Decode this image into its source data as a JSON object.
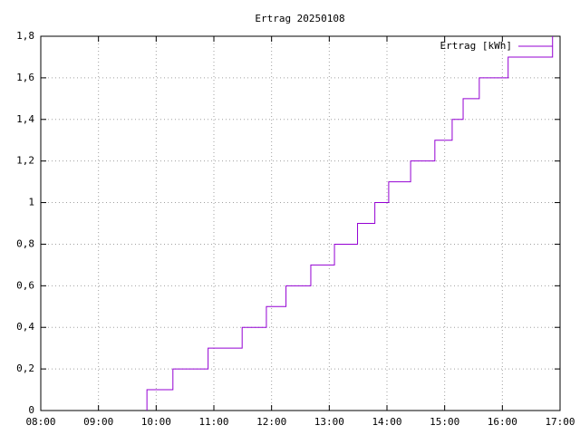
{
  "chart_data": {
    "type": "line",
    "title": "Ertrag 20250108",
    "x": [
      9.84,
      9.84,
      10.29,
      10.29,
      10.9,
      10.9,
      11.49,
      11.49,
      11.91,
      11.91,
      12.25,
      12.25,
      12.68,
      12.68,
      13.09,
      13.09,
      13.49,
      13.49,
      13.79,
      13.79,
      14.03,
      14.03,
      14.41,
      14.41,
      14.83,
      14.83,
      15.13,
      15.13,
      15.32,
      15.32,
      15.6,
      15.6,
      16.1,
      16.1,
      16.87,
      16.87
    ],
    "series": [
      {
        "name": "Ertrag [kWh]",
        "color": "#9400d3",
        "values": [
          0,
          0.1,
          0.1,
          0.2,
          0.2,
          0.3,
          0.3,
          0.4,
          0.4,
          0.5,
          0.5,
          0.6,
          0.6,
          0.7,
          0.7,
          0.8,
          0.8,
          0.9,
          0.9,
          1.0,
          1.0,
          1.1,
          1.1,
          1.2,
          1.2,
          1.3,
          1.3,
          1.4,
          1.4,
          1.5,
          1.5,
          1.6,
          1.6,
          1.7,
          1.7,
          1.8
        ]
      }
    ],
    "xlim": [
      8,
      17
    ],
    "xticks": [
      {
        "value": 8,
        "label": "08:00"
      },
      {
        "value": 9,
        "label": "09:00"
      },
      {
        "value": 10,
        "label": "10:00"
      },
      {
        "value": 11,
        "label": "11:00"
      },
      {
        "value": 12,
        "label": "12:00"
      },
      {
        "value": 13,
        "label": "13:00"
      },
      {
        "value": 14,
        "label": "14:00"
      },
      {
        "value": 15,
        "label": "15:00"
      },
      {
        "value": 16,
        "label": "16:00"
      },
      {
        "value": 17,
        "label": "17:00"
      }
    ],
    "ylim": [
      0,
      1.8
    ],
    "yticks": [
      0,
      {
        "value": 0.2,
        "label": "0,2"
      },
      {
        "value": 0.4,
        "label": "0,4"
      },
      {
        "value": 0.6,
        "label": "0,6"
      },
      {
        "value": 0.8,
        "label": "0,8"
      },
      1,
      {
        "value": 1.2,
        "label": "1,2"
      },
      {
        "value": 1.4,
        "label": "1,4"
      },
      {
        "value": 1.6,
        "label": "1,6"
      },
      {
        "value": 1.8,
        "label": "1,8"
      }
    ],
    "grid": true,
    "legend": "top-right"
  }
}
